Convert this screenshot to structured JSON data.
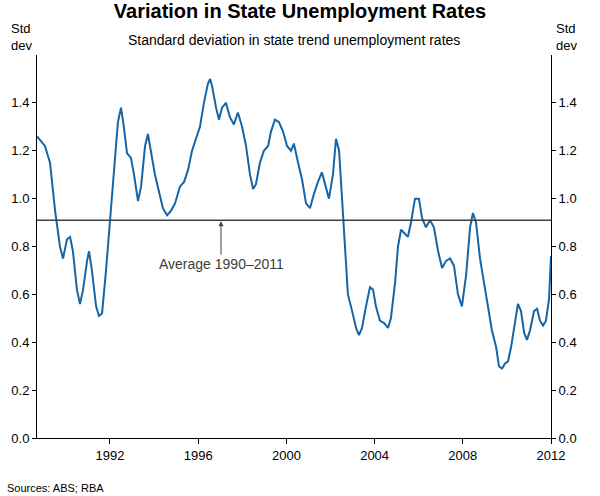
{
  "chart_data": {
    "type": "line",
    "title": "Variation in State Unemployment Rates",
    "subtitle": "Standard deviation in state trend unemployment rates",
    "ylabel": "Std dev",
    "source": "Sources: ABS; RBA",
    "reference_line": {
      "value": 0.91,
      "label": "Average 1990–2011"
    },
    "x": [
      1988.69,
      1989.05,
      1989.28,
      1989.51,
      1989.73,
      1989.87,
      1990.05,
      1990.19,
      1990.32,
      1990.5,
      1990.64,
      1990.78,
      1990.96,
      1991.05,
      1991.18,
      1991.37,
      1991.5,
      1991.64,
      1991.82,
      1992.0,
      1992.18,
      1992.36,
      1992.5,
      1992.63,
      1992.77,
      1992.95,
      1993.09,
      1993.27,
      1993.41,
      1993.59,
      1993.72,
      1993.86,
      1994.04,
      1994.22,
      1994.4,
      1994.59,
      1994.77,
      1994.95,
      1995.17,
      1995.36,
      1995.54,
      1995.72,
      1995.9,
      1996.08,
      1996.26,
      1996.44,
      1996.54,
      1996.63,
      1996.81,
      1996.94,
      1997.08,
      1997.26,
      1997.44,
      1997.62,
      1997.8,
      1997.99,
      1998.17,
      1998.35,
      1998.49,
      1998.62,
      1998.8,
      1998.98,
      1999.17,
      1999.3,
      1999.48,
      1999.66,
      1999.85,
      2000.03,
      2000.21,
      2000.34,
      2000.53,
      2000.71,
      2000.89,
      2001.07,
      2001.25,
      2001.43,
      2001.61,
      2001.75,
      2001.93,
      2002.11,
      2002.25,
      2002.39,
      2002.52,
      2002.66,
      2002.79,
      2002.98,
      2003.16,
      2003.29,
      2003.43,
      2003.61,
      2003.79,
      2003.93,
      2004.06,
      2004.24,
      2004.43,
      2004.61,
      2004.74,
      2004.93,
      2005.06,
      2005.2,
      2005.38,
      2005.51,
      2005.65,
      2005.83,
      2006.01,
      2006.15,
      2006.33,
      2006.51,
      2006.69,
      2006.88,
      2007.06,
      2007.24,
      2007.42,
      2007.6,
      2007.78,
      2007.96,
      2008.15,
      2008.33,
      2008.46,
      2008.6,
      2008.78,
      2008.96,
      2009.14,
      2009.32,
      2009.51,
      2009.64,
      2009.78,
      2009.91,
      2010.05,
      2010.19,
      2010.37,
      2010.5,
      2010.64,
      2010.78,
      2010.91,
      2011.05,
      2011.23,
      2011.37,
      2011.5,
      2011.64,
      2011.77,
      2011.91,
      2012.0
    ],
    "series": [
      {
        "name": "Standard deviation",
        "color": "#1565a7",
        "values": [
          1.26,
          1.22,
          1.15,
          0.95,
          0.8,
          0.75,
          0.83,
          0.84,
          0.78,
          0.62,
          0.56,
          0.62,
          0.74,
          0.78,
          0.7,
          0.55,
          0.51,
          0.52,
          0.7,
          0.9,
          1.1,
          1.32,
          1.38,
          1.3,
          1.19,
          1.17,
          1.1,
          0.99,
          1.05,
          1.22,
          1.27,
          1.2,
          1.1,
          1.03,
          0.96,
          0.93,
          0.95,
          0.98,
          1.05,
          1.07,
          1.12,
          1.2,
          1.25,
          1.3,
          1.4,
          1.48,
          1.5,
          1.47,
          1.38,
          1.33,
          1.38,
          1.4,
          1.34,
          1.31,
          1.36,
          1.3,
          1.22,
          1.1,
          1.04,
          1.06,
          1.15,
          1.2,
          1.22,
          1.28,
          1.33,
          1.32,
          1.28,
          1.22,
          1.2,
          1.23,
          1.15,
          1.08,
          0.98,
          0.96,
          1.02,
          1.07,
          1.11,
          1.06,
          1.0,
          1.1,
          1.25,
          1.2,
          1.0,
          0.75,
          0.6,
          0.53,
          0.46,
          0.43,
          0.46,
          0.55,
          0.63,
          0.62,
          0.55,
          0.49,
          0.48,
          0.46,
          0.5,
          0.65,
          0.8,
          0.87,
          0.85,
          0.84,
          0.9,
          1.0,
          1.0,
          0.92,
          0.88,
          0.91,
          0.88,
          0.78,
          0.71,
          0.74,
          0.75,
          0.72,
          0.6,
          0.55,
          0.68,
          0.88,
          0.94,
          0.9,
          0.75,
          0.64,
          0.55,
          0.45,
          0.38,
          0.3,
          0.29,
          0.31,
          0.32,
          0.38,
          0.48,
          0.56,
          0.53,
          0.44,
          0.41,
          0.45,
          0.53,
          0.54,
          0.49,
          0.47,
          0.49,
          0.58,
          0.76
        ]
      }
    ],
    "xlim": [
      1988.69,
      2012.0
    ],
    "xticks": [
      1992,
      1996,
      2000,
      2004,
      2008,
      2012
    ],
    "ylim": [
      0,
      1.6
    ],
    "yticks": [
      {
        "value": 0,
        "label": "0.0"
      },
      0.2,
      0.4,
      0.6,
      0.8,
      {
        "value": 1,
        "label": "1.0"
      },
      1.2,
      1.4
    ],
    "grid": false
  }
}
